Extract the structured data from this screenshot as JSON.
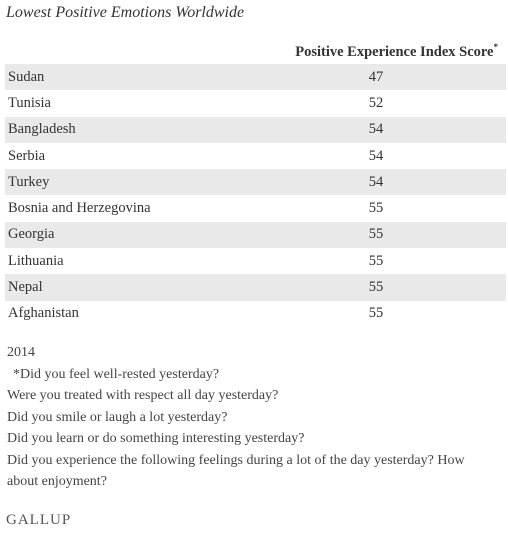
{
  "title": "Lowest Positive Emotions Worldwide",
  "table": {
    "header": "Positive Experience Index Score",
    "header_mark": "*",
    "rows": [
      [
        "Sudan",
        47
      ],
      [
        "Tunisia",
        52
      ],
      [
        "Bangladesh",
        54
      ],
      [
        "Serbia",
        54
      ],
      [
        "Turkey",
        54
      ],
      [
        "Bosnia and Herzegovina",
        55
      ],
      [
        "Georgia",
        55
      ],
      [
        "Lithuania",
        55
      ],
      [
        "Nepal",
        55
      ],
      [
        "Afghanistan",
        55
      ]
    ]
  },
  "notes": [
    "2014",
    "*Did you feel well-rested yesterday?",
    "Were you treated with respect all day yesterday?",
    "Did you smile or laugh a lot yesterday?",
    "Did you learn or do something interesting yesterday?",
    "Did you experience the following feelings during a lot of the day yesterday? How about enjoyment?"
  ],
  "logo": "GALLUP"
}
